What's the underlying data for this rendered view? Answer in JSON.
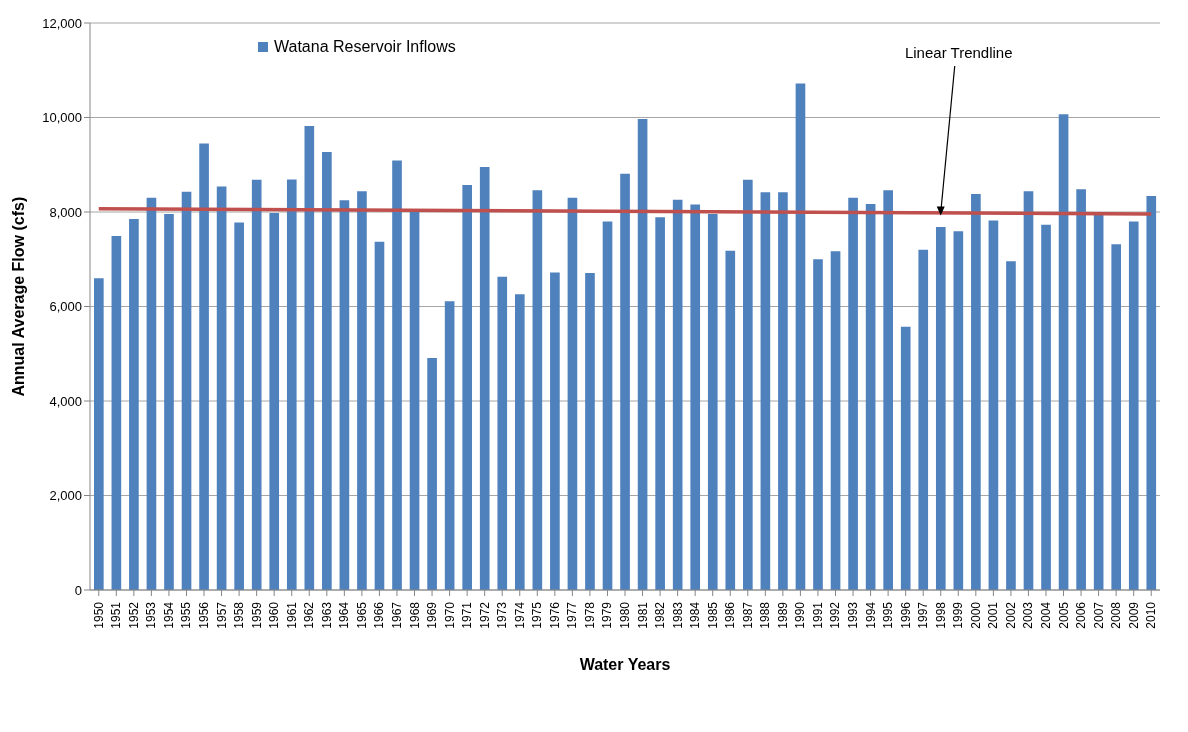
{
  "chart_data": {
    "type": "bar",
    "xlabel": "Water Years",
    "ylabel": "Annual Average Flow (cfs)",
    "categories": [
      "1950",
      "1951",
      "1952",
      "1953",
      "1954",
      "1955",
      "1956",
      "1957",
      "1958",
      "1959",
      "1960",
      "1961",
      "1962",
      "1963",
      "1964",
      "1965",
      "1966",
      "1967",
      "1968",
      "1969",
      "1970",
      "1971",
      "1972",
      "1973",
      "1974",
      "1975",
      "1976",
      "1977",
      "1978",
      "1979",
      "1980",
      "1981",
      "1982",
      "1983",
      "1984",
      "1985",
      "1986",
      "1987",
      "1988",
      "1989",
      "1990",
      "1991",
      "1992",
      "1993",
      "1994",
      "1995",
      "1996",
      "1997",
      "1998",
      "1999",
      "2000",
      "2001",
      "2002",
      "2003",
      "2004",
      "2005",
      "2006",
      "2007",
      "2008",
      "2009",
      "2010"
    ],
    "series": [
      {
        "name": "Watana Reservoir Inflows",
        "color": "#4f81bd",
        "values": [
          6600,
          7490,
          7850,
          8300,
          7960,
          8430,
          9450,
          8540,
          7780,
          8680,
          7980,
          8690,
          9820,
          9270,
          8250,
          8440,
          7370,
          9090,
          8000,
          4910,
          6110,
          8570,
          8950,
          6630,
          6260,
          8460,
          6720,
          8300,
          6710,
          7800,
          8810,
          9970,
          7890,
          8260,
          8160,
          7960,
          7180,
          8680,
          8420,
          8420,
          10720,
          7000,
          7170,
          8300,
          8170,
          8460,
          5570,
          7200,
          7680,
          7590,
          8380,
          7820,
          6960,
          8440,
          7730,
          10070,
          8480,
          7960,
          7320,
          7800,
          8340
        ]
      },
      {
        "type": "line",
        "color": "#c0504d",
        "values": [
          8070,
          null,
          null,
          null,
          null,
          null,
          null,
          null,
          null,
          null,
          null,
          null,
          null,
          null,
          null,
          null,
          null,
          null,
          null,
          null,
          null,
          null,
          null,
          null,
          null,
          null,
          null,
          null,
          null,
          null,
          null,
          null,
          null,
          null,
          null,
          null,
          null,
          null,
          null,
          null,
          null,
          null,
          null,
          null,
          null,
          null,
          null,
          null,
          null,
          null,
          null,
          null,
          null,
          null,
          null,
          null,
          null,
          null,
          null,
          null,
          7960
        ]
      }
    ],
    "ylim": [
      0,
      12000
    ],
    "yticks": [
      {
        "value": 0,
        "label": "0"
      },
      {
        "value": 2000,
        "label": "2,000"
      },
      {
        "value": 4000,
        "label": "4,000"
      },
      {
        "value": 6000,
        "label": "6,000"
      },
      {
        "value": 8000,
        "label": "8,000"
      },
      {
        "value": 10000,
        "label": "10,000"
      },
      {
        "value": 12000,
        "label": "12,000"
      }
    ],
    "grid": "y",
    "legend": "top left",
    "marker": "none",
    "annotations": [
      {
        "text": "Linear Trendline",
        "x": "1998",
        "y": 7990
      }
    ]
  }
}
